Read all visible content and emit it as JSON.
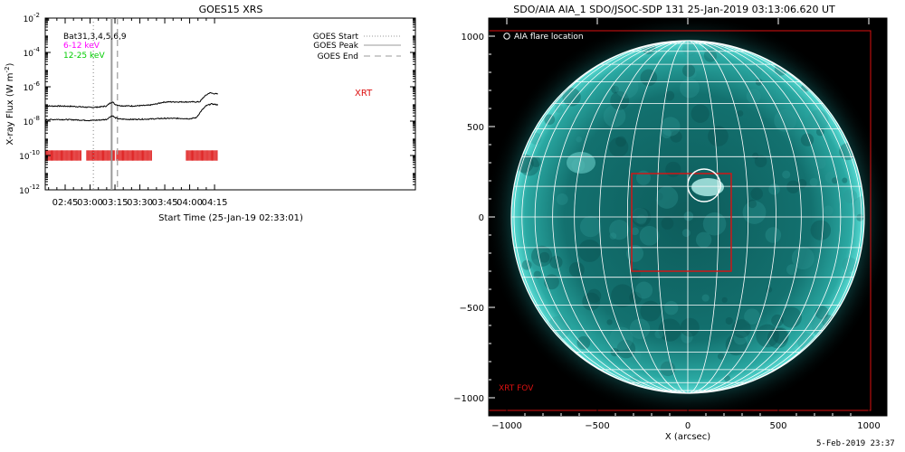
{
  "chart_data": [
    {
      "type": "line",
      "title": "GOES15 XRS",
      "xlabel": "Start Time (25-Jan-19 02:33:01)",
      "ylabel": "X-ray Flux (W m",
      "ylabel_unit_exp": "-2",
      "ylabel_close": ")",
      "log_y": true,
      "ylim_exp": [
        -12,
        -2
      ],
      "y_tick_exps": [
        -12,
        -10,
        -8,
        -6,
        -4,
        -2
      ],
      "xlim_min": [
        33,
        256
      ],
      "x_ticks": [
        {
          "label": "02:45",
          "min": 45
        },
        {
          "label": "03:00",
          "min": 60
        },
        {
          "label": "03:15",
          "min": 75
        },
        {
          "label": "03:30",
          "min": 90
        },
        {
          "label": "03:45",
          "min": 105
        },
        {
          "label": "04:00",
          "min": 120
        },
        {
          "label": "04:15",
          "min": 135
        }
      ],
      "time_labels": [
        "02:45",
        "03:00",
        "03:15",
        "03:30",
        "03:45",
        "04:00",
        "04:15"
      ],
      "y_tick_base": "10",
      "left_legend": [
        {
          "text": "Bat31,3,4,5,6,9",
          "color": "#000000"
        },
        {
          "text": "6-12 keV",
          "color": "#ff00ff"
        },
        {
          "text": "12-25 keV",
          "color": "#00cc00"
        }
      ],
      "right_legend": [
        {
          "text": "GOES Start",
          "style": "dotted",
          "color": "#999999"
        },
        {
          "text": "GOES Peak",
          "style": "solid",
          "color": "#999999"
        },
        {
          "text": "GOES End",
          "style": "dashed",
          "color": "#999999"
        }
      ],
      "annotation": "XRT",
      "markers": {
        "start_min": 62,
        "peak_min": 73,
        "end_min": 76.5
      },
      "series": [
        {
          "color": "#000000",
          "x": [
            33,
            40,
            50,
            60,
            65,
            70,
            72,
            73.5,
            75,
            78,
            85,
            95,
            100,
            104,
            107,
            110,
            115,
            120,
            126,
            129,
            132,
            135,
            137
          ],
          "log_y": [
            -7.12,
            -7.12,
            -7.14,
            -7.2,
            -7.18,
            -7.12,
            -6.95,
            -6.88,
            -7.02,
            -7.1,
            -7.12,
            -7.08,
            -7.0,
            -6.9,
            -6.88,
            -6.88,
            -6.88,
            -6.88,
            -6.88,
            -6.55,
            -6.35,
            -6.4,
            -6.42
          ]
        },
        {
          "color": "#000000",
          "x": [
            33,
            40,
            50,
            60,
            65,
            70,
            72,
            73.5,
            75,
            78,
            85,
            95,
            100,
            104,
            107,
            110,
            115,
            120,
            124,
            127,
            130,
            133,
            135,
            137
          ],
          "log_y": [
            -7.92,
            -7.9,
            -7.92,
            -7.96,
            -7.94,
            -7.9,
            -7.75,
            -7.68,
            -7.8,
            -7.88,
            -7.9,
            -7.88,
            -7.86,
            -7.84,
            -7.84,
            -7.84,
            -7.84,
            -7.86,
            -7.8,
            -7.4,
            -7.1,
            -7.0,
            -7.02,
            -7.05
          ]
        }
      ],
      "xrt_obs_windows_min": [
        [
          33.5,
          55
        ],
        [
          58,
          75
        ],
        [
          76,
          97
        ],
        [
          118,
          137
        ]
      ]
    },
    {
      "type": "image",
      "title": "SDO/AIA AIA_1 SDO/JSOC-SDP 131 25-Jan-2019 03:13:06.620 UT",
      "xlabel": "X (arcsec)",
      "xlim": [
        -1100,
        1100
      ],
      "ylim": [
        -1100,
        1100
      ],
      "x_ticks": [
        -1000,
        -500,
        0,
        500,
        1000
      ],
      "y_ticks": [
        -1000,
        -500,
        0,
        500,
        1000
      ],
      "x_tick_labels": [
        "−1000",
        "−500",
        "0",
        "500",
        "1000"
      ],
      "y_tick_labels": [
        "1000",
        "500",
        "0",
        "−500",
        "−1000"
      ],
      "solar_radius_arcsec": 975,
      "flare_location": {
        "x": 90,
        "y": 175,
        "r": 90
      },
      "xrt_fov_large": {
        "x0": -1110,
        "x1": 1010,
        "y0": -1070,
        "y1": 1030
      },
      "xrt_fov_small": {
        "x0": -310,
        "x1": 240,
        "y0": -300,
        "y1": 240
      },
      "legend": "AIA flare location",
      "label_xrt_fov": "XRT FOV",
      "colors": {
        "disk": "#0f6a68",
        "limb": "#3cc8c0",
        "grid": "#ffffff",
        "fov": "#dd1111"
      }
    }
  ],
  "footer": {
    "date": "5-Feb-2019 23:37"
  }
}
